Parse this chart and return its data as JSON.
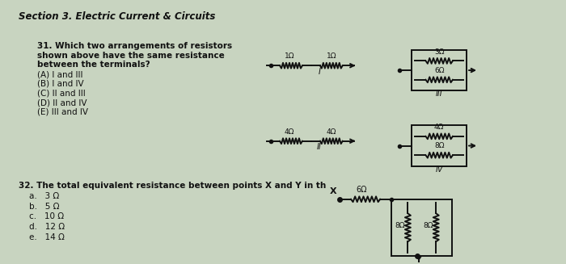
{
  "background_color": "#c8d4c0",
  "title": "Section 3. Electric Current & Circuits",
  "q31_lines": [
    "31. Which two arrangements of resistors",
    "shown above have the same resistance",
    "between the terminals?",
    "(A) I and III",
    "(B) I and IV",
    "(C) II and III",
    "(D) II and IV",
    "(E) III and IV"
  ],
  "q32_lines": [
    "32. The total equivalent resistance between points X and Y in th",
    "a.   3 Ω",
    "b.   5 Ω",
    "c.   10 Ω",
    "d.   12 Ω",
    "e.   14 Ω"
  ],
  "text_color": "#111111",
  "circuit_color": "#111111",
  "title_fontsize": 8.5,
  "body_fontsize": 7.5,
  "circuit_lw": 1.4
}
